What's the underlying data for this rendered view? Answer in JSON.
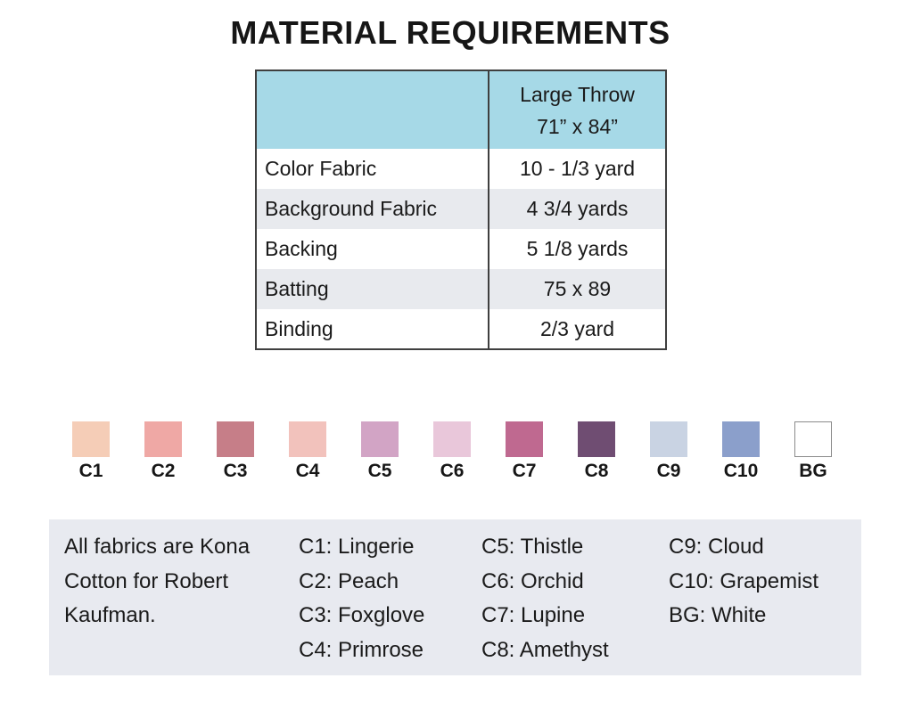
{
  "title": "MATERIAL REQUIREMENTS",
  "colors": {
    "header_bg": "#a6d9e7",
    "stripe_bg": "#e8eaee",
    "legend_bg": "#e8eaf0",
    "border": "#3f3f3f",
    "text": "#1a1a1a"
  },
  "table": {
    "header": {
      "size_line1": "Large Throw",
      "size_line2": "71” x 84”"
    },
    "rows": [
      {
        "label": "Color Fabric",
        "value": "10 - 1/3 yard"
      },
      {
        "label": "Background Fabric",
        "value": "4 3/4 yards"
      },
      {
        "label": "Backing",
        "value": "5 1/8 yards"
      },
      {
        "label": "Batting",
        "value": "75 x 89"
      },
      {
        "label": "Binding",
        "value": "2/3 yard"
      }
    ]
  },
  "swatches": [
    {
      "code": "C1",
      "color": "#f5cdb7"
    },
    {
      "code": "C2",
      "color": "#efa8a5"
    },
    {
      "code": "C3",
      "color": "#c67e88"
    },
    {
      "code": "C4",
      "color": "#f2c2bc"
    },
    {
      "code": "C5",
      "color": "#d2a4c5"
    },
    {
      "code": "C6",
      "color": "#e9c7da"
    },
    {
      "code": "C7",
      "color": "#bf6990"
    },
    {
      "code": "C8",
      "color": "#6f4d72"
    },
    {
      "code": "C9",
      "color": "#c9d3e3"
    },
    {
      "code": "C10",
      "color": "#8b9fcb"
    },
    {
      "code": "BG",
      "color": "#ffffff"
    }
  ],
  "legend": {
    "note": "All fabrics are Kona Cotton for Robert Kaufman.",
    "columns": [
      [
        "C1: Lingerie",
        "C2: Peach",
        "C3: Foxglove",
        "C4: Primrose"
      ],
      [
        "C5: Thistle",
        "C6: Orchid",
        "C7: Lupine",
        "C8: Amethyst"
      ],
      [
        "C9: Cloud",
        "C10: Grapemist",
        "BG: White"
      ]
    ]
  }
}
